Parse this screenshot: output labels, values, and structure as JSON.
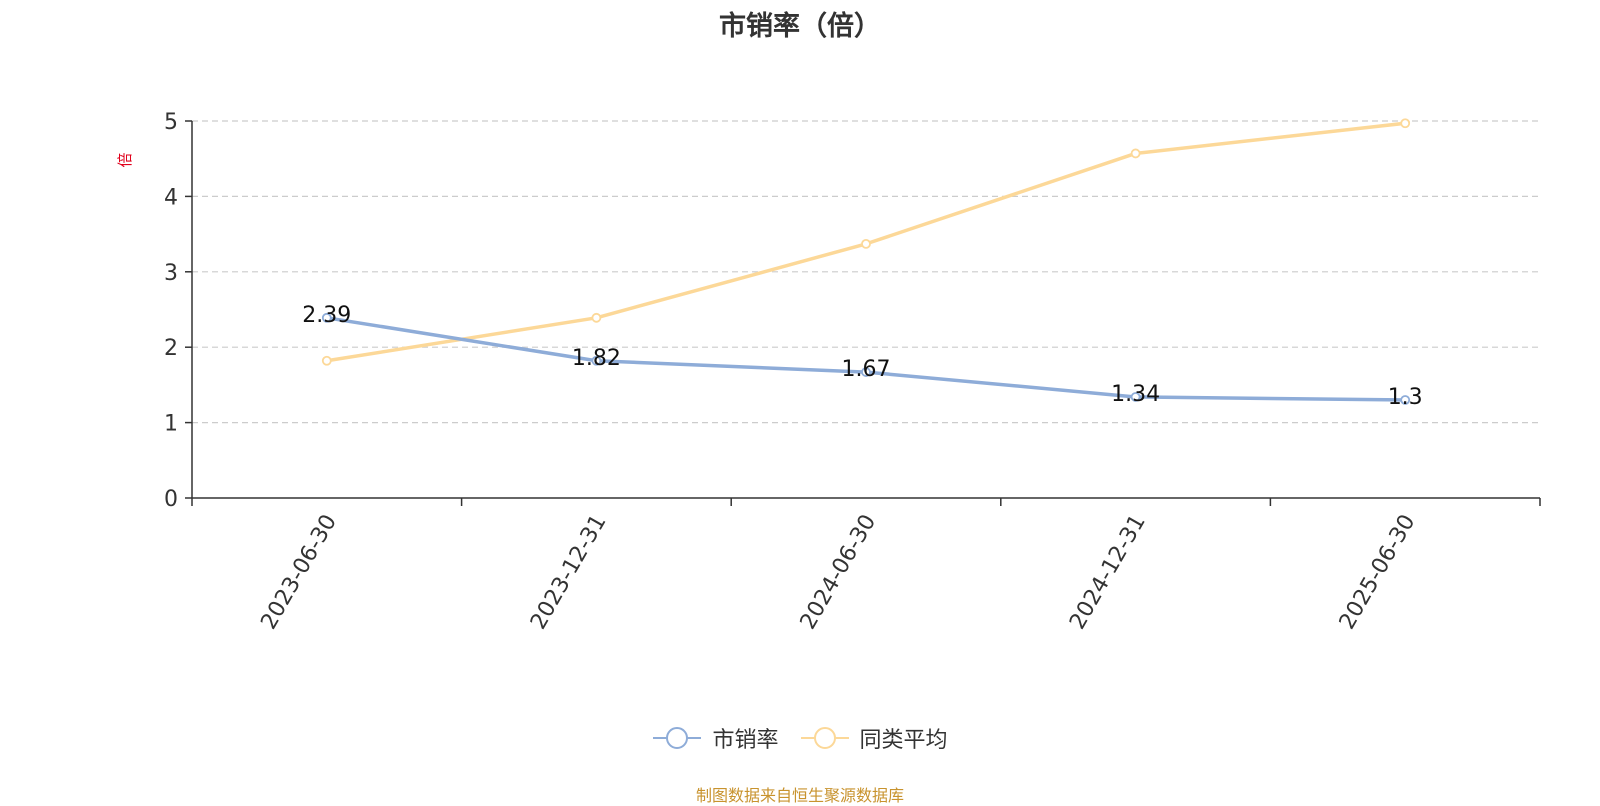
{
  "chart_data": {
    "type": "line",
    "title": "市销率（倍）",
    "ylabel": "倍",
    "categories": [
      "2023-06-30",
      "2023-12-31",
      "2024-06-30",
      "2024-12-31",
      "2025-06-30"
    ],
    "ylim": [
      0,
      5
    ],
    "yticks": [
      "0",
      "1",
      "2",
      "3",
      "4",
      "5"
    ],
    "grid": true,
    "legend_position": "bottom",
    "series": [
      {
        "name": "市销率",
        "values": [
          2.39,
          1.82,
          1.67,
          1.34,
          1.3
        ],
        "labels": [
          "2.39",
          "1.82",
          "1.67",
          "1.34",
          "1.3"
        ],
        "color": "#8eacd8",
        "show_labels": true
      },
      {
        "name": "同类平均",
        "values": [
          1.82,
          2.39,
          3.37,
          4.57,
          4.97
        ],
        "color": "#fcd898",
        "show_labels": false
      }
    ]
  },
  "ylabel_color": "#e0001b",
  "source_text": "制图数据来自恒生聚源数据库"
}
